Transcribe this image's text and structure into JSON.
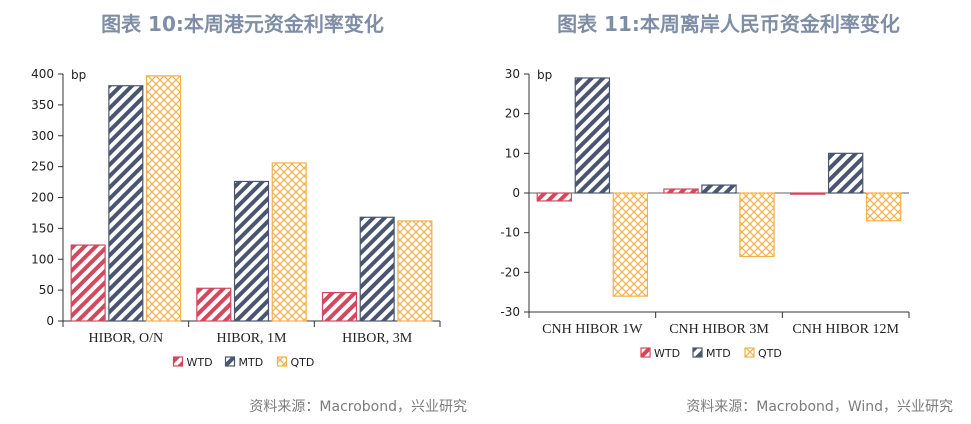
{
  "legend_labels": [
    "WTD",
    "MTD",
    "QTD"
  ],
  "colors": {
    "WTD": "#d2495e",
    "MTD": "#4a5670",
    "QTD": "#f2b04b",
    "title": "#7f8ea6"
  },
  "chart_data": [
    {
      "type": "bar",
      "title": "图表 10:本周港元资金利率变化",
      "ylabel": "bp",
      "categories": [
        "HIBOR, O/N",
        "HIBOR, 1M",
        "HIBOR, 3M"
      ],
      "series": [
        {
          "name": "WTD",
          "values": [
            123,
            53,
            46
          ]
        },
        {
          "name": "MTD",
          "values": [
            381,
            226,
            168
          ]
        },
        {
          "name": "QTD",
          "values": [
            397,
            256,
            162
          ]
        }
      ],
      "ylim": [
        0,
        400
      ],
      "yticks": [
        0,
        50,
        100,
        150,
        200,
        250,
        300,
        350,
        400
      ],
      "source": "资料来源：Macrobond，兴业研究"
    },
    {
      "type": "bar",
      "title": "图表 11:本周离岸人民币资金利率变化",
      "ylabel": "bp",
      "categories": [
        "CNH HIBOR 1W",
        "CNH HIBOR 3M",
        "CNH HIBOR 12M"
      ],
      "series": [
        {
          "name": "WTD",
          "values": [
            -2,
            1,
            -0.3
          ]
        },
        {
          "name": "MTD",
          "values": [
            29,
            2,
            10
          ]
        },
        {
          "name": "QTD",
          "values": [
            -26,
            -16,
            -7
          ]
        }
      ],
      "ylim": [
        -30,
        30
      ],
      "yticks": [
        -30,
        -20,
        -10,
        0,
        10,
        20,
        30
      ],
      "source": "资料来源：Macrobond，Wind，兴业研究"
    }
  ]
}
